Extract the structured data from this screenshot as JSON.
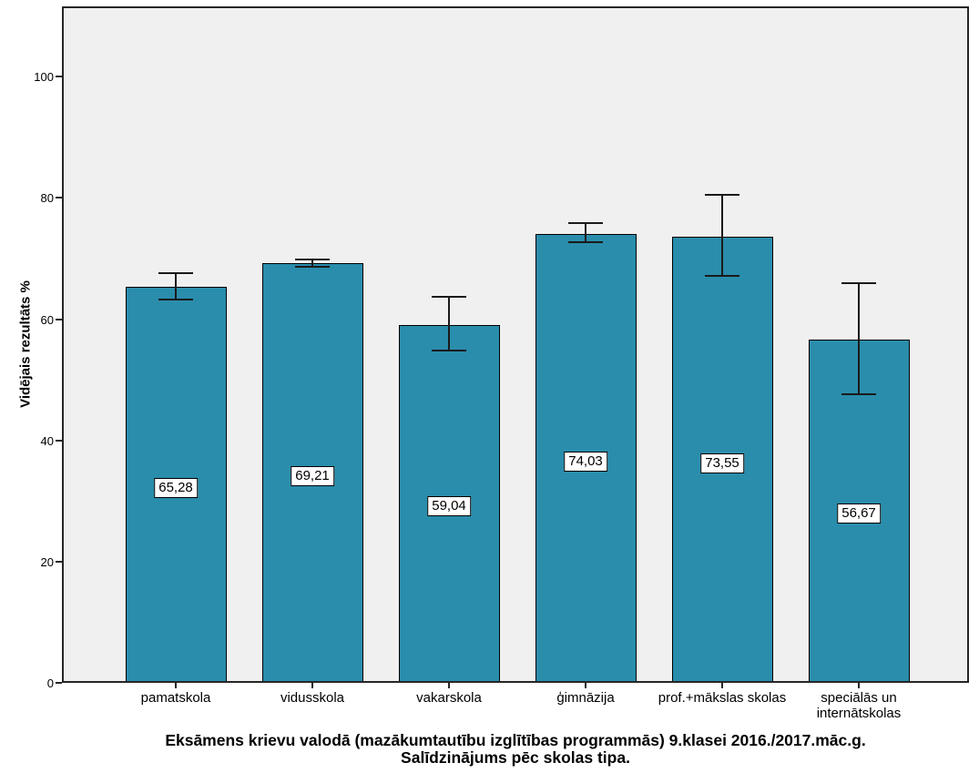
{
  "chart_data": {
    "type": "bar",
    "title_lines": [
      "Eksāmens krievu valodā (mazākumtautību izglītības programmās) 9.klasei 2016./2017.māc.g.",
      "Salīdzinājums pēc skolas tipa."
    ],
    "ylabel": "Vidējais rezultāts %",
    "xlabel": "",
    "categories": [
      "pamatskola",
      "vidusskola",
      "vakarskola",
      "ģimnāzija",
      "prof.+mākslas skolas",
      "speciālās un internātskolas"
    ],
    "values": [
      65.28,
      69.21,
      59.04,
      74.03,
      73.55,
      56.67
    ],
    "value_labels": [
      "65,28",
      "69,21",
      "59,04",
      "74,03",
      "73,55",
      "56,67"
    ],
    "error_high": [
      67.6,
      69.8,
      63.7,
      75.8,
      80.5,
      65.9
    ],
    "error_low": [
      63.2,
      68.7,
      54.8,
      72.7,
      67.1,
      47.6
    ],
    "y_ticks": [
      0,
      20,
      40,
      60,
      80,
      100
    ],
    "ylim": [
      0,
      111.6
    ],
    "grid": false,
    "legend": null,
    "bar_color": "#2A8DAC",
    "plot_bg": "#F0F0F0"
  }
}
